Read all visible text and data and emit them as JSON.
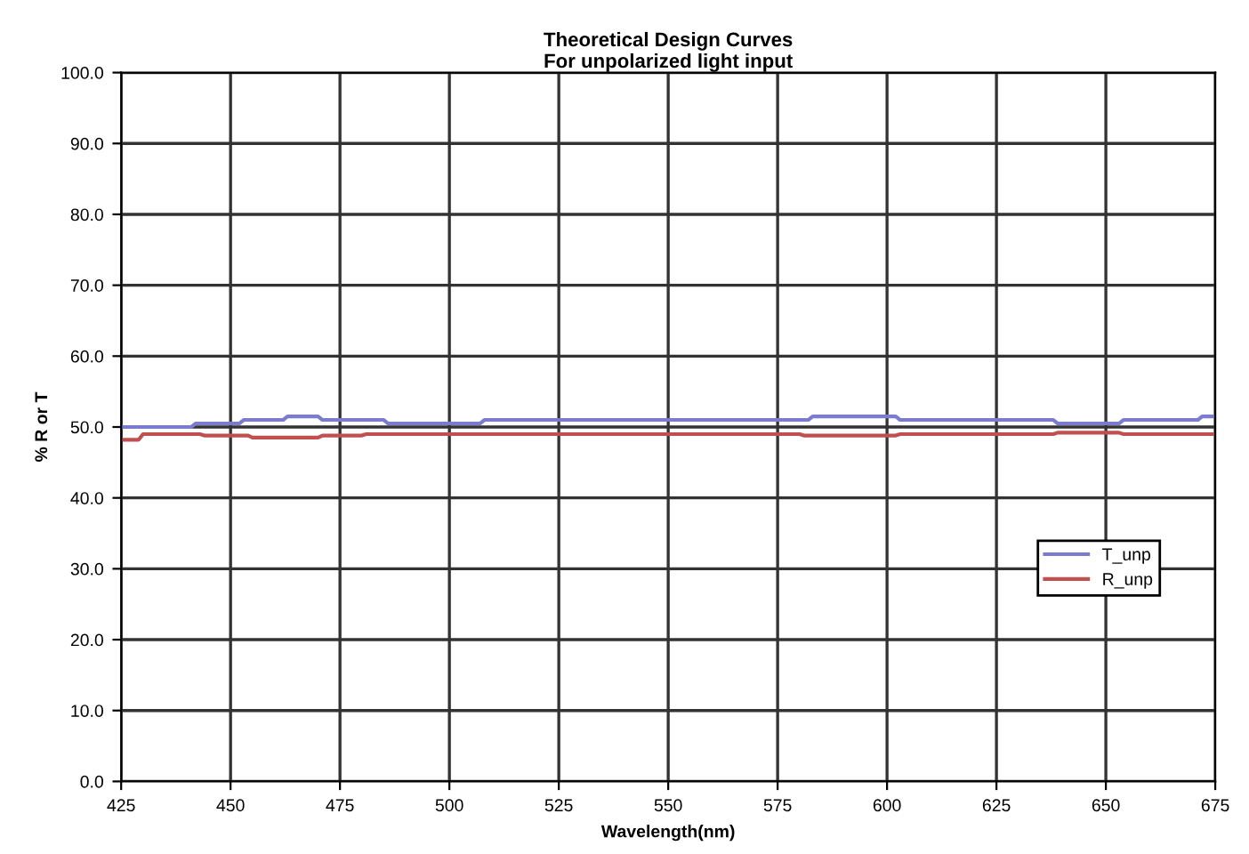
{
  "chart_data": {
    "type": "line",
    "title": "Theoretical Design Curves\nFor unpolarized light input",
    "xlabel": "Wavelength(nm)",
    "ylabel": "% R or T",
    "xlim": [
      425,
      675
    ],
    "xticks": [
      425,
      450,
      475,
      500,
      525,
      550,
      575,
      600,
      625,
      650,
      675
    ],
    "ylim": [
      0,
      100
    ],
    "yticks": [
      {
        "value": 0,
        "label": "0.0"
      },
      {
        "value": 10,
        "label": "10.0"
      },
      {
        "value": 20,
        "label": "20.0"
      },
      {
        "value": 30,
        "label": "30.0"
      },
      {
        "value": 40,
        "label": "40.0"
      },
      {
        "value": 50,
        "label": "50.0"
      },
      {
        "value": 60,
        "label": "60.0"
      },
      {
        "value": 70,
        "label": "70.0"
      },
      {
        "value": 80,
        "label": "80.0"
      },
      {
        "value": 90,
        "label": "90.0"
      },
      {
        "value": 100,
        "label": "100.0"
      }
    ],
    "grid": true,
    "legend": "right",
    "marker": "none",
    "line_style": "solid",
    "series": [
      {
        "name": "T_unp",
        "color": "#7b7bd0",
        "x": [
          425,
          441,
          442,
          452,
          453,
          462,
          463,
          470,
          471,
          485,
          486,
          507,
          508,
          582,
          583,
          602,
          603,
          638,
          639,
          653,
          654,
          671,
          672,
          675
        ],
        "values": [
          50.0,
          50.0,
          50.5,
          50.5,
          51.0,
          51.0,
          51.5,
          51.5,
          51.0,
          51.0,
          50.5,
          50.5,
          51.0,
          51.0,
          51.5,
          51.5,
          51.0,
          51.0,
          50.5,
          50.5,
          51.0,
          51.0,
          51.5,
          51.5
        ]
      },
      {
        "name": "R_unp",
        "color": "#c05050",
        "x": [
          425,
          429,
          430,
          443,
          444,
          454,
          455,
          470,
          471,
          480,
          481,
          580,
          581,
          602,
          603,
          638,
          639,
          653,
          654,
          675
        ],
        "values": [
          48.2,
          48.2,
          49.0,
          49.0,
          48.8,
          48.8,
          48.5,
          48.5,
          48.8,
          48.8,
          49.0,
          49.0,
          48.8,
          48.8,
          49.0,
          49.0,
          49.2,
          49.2,
          49.0,
          49.0
        ]
      }
    ]
  }
}
